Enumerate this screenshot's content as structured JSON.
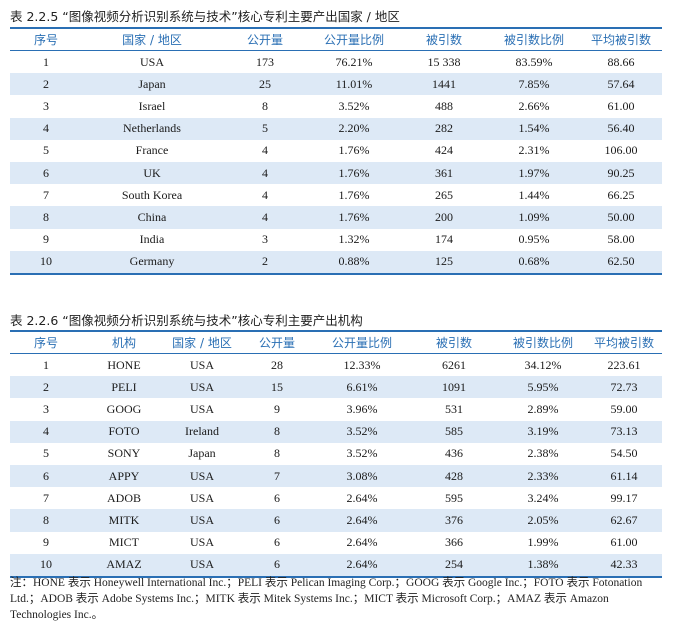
{
  "table1": {
    "caption": "表 2.2.5 “图像视频分析识别系统与技术”核心专利主要产出国家 / 地区",
    "headers": [
      "序号",
      "国家 / 地区",
      "公开量",
      "公开量比例",
      "被引数",
      "被引数比例",
      "平均被引数"
    ],
    "rows": [
      [
        "1",
        "USA",
        "173",
        "76.21%",
        "15 338",
        "83.59%",
        "88.66"
      ],
      [
        "2",
        "Japan",
        "25",
        "11.01%",
        "1441",
        "7.85%",
        "57.64"
      ],
      [
        "3",
        "Israel",
        "8",
        "3.52%",
        "488",
        "2.66%",
        "61.00"
      ],
      [
        "4",
        "Netherlands",
        "5",
        "2.20%",
        "282",
        "1.54%",
        "56.40"
      ],
      [
        "5",
        "France",
        "4",
        "1.76%",
        "424",
        "2.31%",
        "106.00"
      ],
      [
        "6",
        "UK",
        "4",
        "1.76%",
        "361",
        "1.97%",
        "90.25"
      ],
      [
        "7",
        "South Korea",
        "4",
        "1.76%",
        "265",
        "1.44%",
        "66.25"
      ],
      [
        "8",
        "China",
        "4",
        "1.76%",
        "200",
        "1.09%",
        "50.00"
      ],
      [
        "9",
        "India",
        "3",
        "1.32%",
        "174",
        "0.95%",
        "58.00"
      ],
      [
        "10",
        "Germany",
        "2",
        "0.88%",
        "125",
        "0.68%",
        "62.50"
      ]
    ]
  },
  "table2": {
    "caption": "表 2.2.6 “图像视频分析识别系统与技术”核心专利主要产出机构",
    "headers": [
      "序号",
      "机构",
      "国家 / 地区",
      "公开量",
      "公开量比例",
      "被引数",
      "被引数比例",
      "平均被引数"
    ],
    "rows": [
      [
        "1",
        "HONE",
        "USA",
        "28",
        "12.33%",
        "6261",
        "34.12%",
        "223.61"
      ],
      [
        "2",
        "PELI",
        "USA",
        "15",
        "6.61%",
        "1091",
        "5.95%",
        "72.73"
      ],
      [
        "3",
        "GOOG",
        "USA",
        "9",
        "3.96%",
        "531",
        "2.89%",
        "59.00"
      ],
      [
        "4",
        "FOTO",
        "Ireland",
        "8",
        "3.52%",
        "585",
        "3.19%",
        "73.13"
      ],
      [
        "5",
        "SONY",
        "Japan",
        "8",
        "3.52%",
        "436",
        "2.38%",
        "54.50"
      ],
      [
        "6",
        "APPY",
        "USA",
        "7",
        "3.08%",
        "428",
        "2.33%",
        "61.14"
      ],
      [
        "7",
        "ADOB",
        "USA",
        "6",
        "2.64%",
        "595",
        "3.24%",
        "99.17"
      ],
      [
        "8",
        "MITK",
        "USA",
        "6",
        "2.64%",
        "376",
        "2.05%",
        "62.67"
      ],
      [
        "9",
        "MICT",
        "USA",
        "6",
        "2.64%",
        "366",
        "1.99%",
        "61.00"
      ],
      [
        "10",
        "AMAZ",
        "USA",
        "6",
        "2.64%",
        "254",
        "1.38%",
        "42.33"
      ]
    ]
  },
  "footnote": "注：HONE 表示 Honeywell International Inc.；PELI 表示 Pelican Imaging Corp.；GOOG 表示 Google Inc.；FOTO 表示 Fotonation Ltd.；ADOB 表示 Adobe Systems Inc.；MITK 表示 Mitek Systems Inc.；MICT 表示 Microsoft Corp.；AMAZ 表示 Amazon Technologies Inc.。",
  "colors": {
    "accent": "#2a6fb4",
    "stripe": "#dde9f6"
  }
}
